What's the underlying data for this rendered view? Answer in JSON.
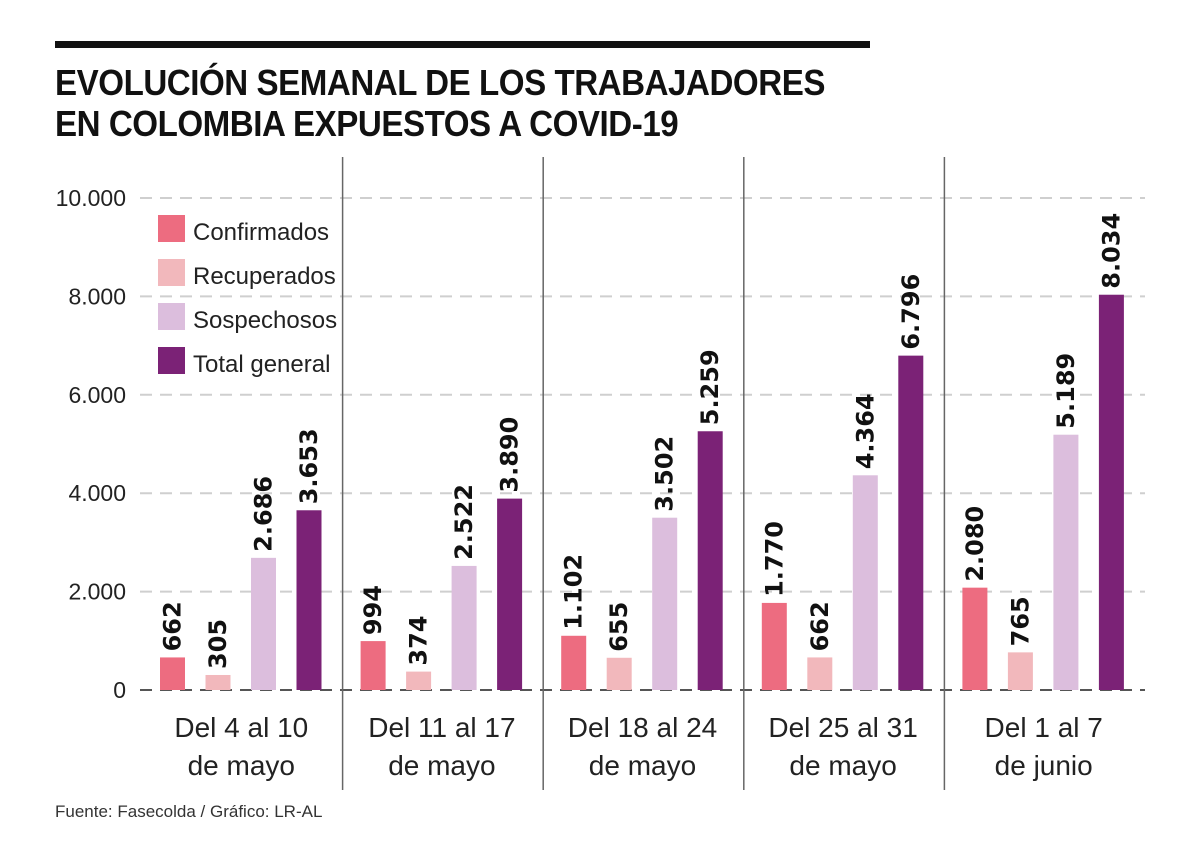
{
  "title_lines": [
    "EVOLUCIÓN SEMANAL DE LOS TRABAJADORES",
    "EN COLOMBIA EXPUESTOS A COVID-19"
  ],
  "source": "Fuente: Fasecolda / Gráfico: LR-AL",
  "chart_data": {
    "type": "bar",
    "title": "EVOLUCIÓN SEMANAL DE LOS TRABAJADORES EN COLOMBIA EXPUESTOS A COVID-19",
    "xlabel": "",
    "ylabel": "",
    "ylim": [
      0,
      10000
    ],
    "yticks": [
      0,
      2000,
      4000,
      6000,
      8000,
      10000
    ],
    "ytick_labels": [
      "0",
      "2.000",
      "4.000",
      "6.000",
      "8.000",
      "10.000"
    ],
    "grid": true,
    "legend_position": "top-left",
    "categories": [
      [
        "Del 4 al 10",
        "de mayo"
      ],
      [
        "Del 11 al 17",
        "de mayo"
      ],
      [
        "Del 18 al 24",
        "de mayo"
      ],
      [
        "Del 25 al 31",
        "de mayo"
      ],
      [
        "Del 1 al 7",
        "de junio"
      ]
    ],
    "series": [
      {
        "name": "Confirmados",
        "color": "#ed6c80",
        "values": [
          662,
          994,
          1102,
          1770,
          2080
        ],
        "labels": [
          "662",
          "994",
          "1.102",
          "1.770",
          "2.080"
        ]
      },
      {
        "name": "Recuperados",
        "color": "#f2b8bc",
        "values": [
          305,
          374,
          655,
          662,
          765
        ],
        "labels": [
          "305",
          "374",
          "655",
          "662",
          "765"
        ]
      },
      {
        "name": "Sospechosos",
        "color": "#dcbedd",
        "values": [
          2686,
          2522,
          3502,
          4364,
          5189
        ],
        "labels": [
          "2.686",
          "2.522",
          "3.502",
          "4.364",
          "5.189"
        ]
      },
      {
        "name": "Total general",
        "color": "#7b2276",
        "values": [
          3653,
          3890,
          5259,
          6796,
          8034
        ],
        "labels": [
          "3.653",
          "3.890",
          "5.259",
          "6.796",
          "8.034"
        ]
      }
    ]
  }
}
